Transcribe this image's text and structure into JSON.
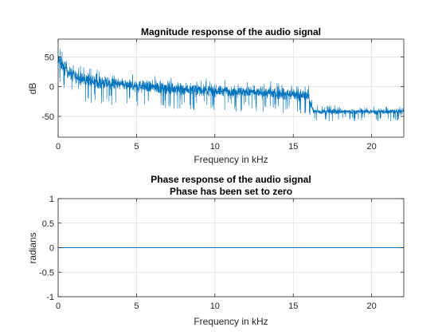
{
  "chart_data": [
    {
      "type": "line",
      "title": "Magnitude response of the audio signal",
      "xlabel": "Frequency in kHz",
      "ylabel": "dB",
      "xlim": [
        0,
        22.05
      ],
      "ylim": [
        -85,
        80
      ],
      "xticks": [
        0,
        5,
        10,
        15,
        20
      ],
      "yticks": [
        -50,
        0,
        50
      ],
      "grid": true,
      "series_color": "#0072BD",
      "envelope": {
        "x": [
          0,
          0.5,
          1,
          2,
          3,
          5,
          8,
          10,
          13,
          15,
          16,
          16.1,
          16.3,
          18,
          20,
          22.05
        ],
        "mean": [
          45,
          28,
          18,
          10,
          6,
          1,
          -4,
          -7,
          -10,
          -13,
          -15,
          -28,
          -42,
          -42,
          -42,
          -42
        ],
        "spread": [
          18,
          17,
          16,
          16,
          15,
          15,
          15,
          14,
          14,
          14,
          13,
          10,
          7,
          7,
          7,
          7
        ]
      }
    },
    {
      "type": "line",
      "title": "Phase response of the audio signal",
      "subtitle": "Phase has been set to zero",
      "xlabel": "Frequency in kHz",
      "ylabel": "radians",
      "xlim": [
        0,
        22.05
      ],
      "ylim": [
        -1,
        1
      ],
      "xticks": [
        0,
        5,
        10,
        15,
        20
      ],
      "yticks": [
        -1,
        -0.5,
        0,
        0.5,
        1
      ],
      "grid": true,
      "series_color": "#0072BD",
      "x": [
        0,
        22.05
      ],
      "y": [
        0,
        0
      ]
    }
  ]
}
